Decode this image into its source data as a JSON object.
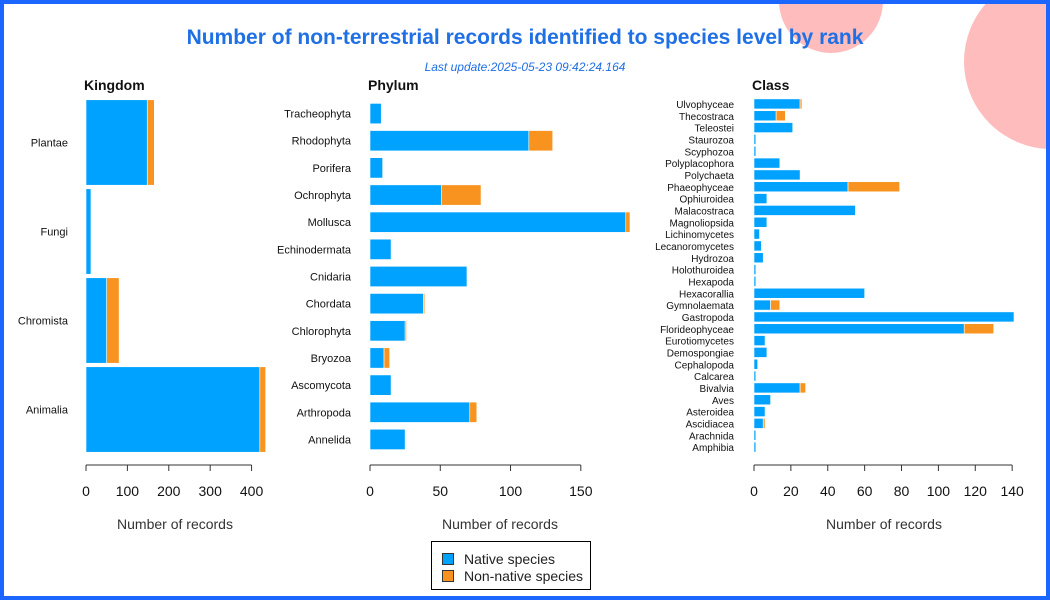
{
  "title": "Number of non-terrestrial records identified to species level by rank",
  "subtitle": "Last update:2025-05-23 09:42:24.164",
  "colors": {
    "native": "#00a2ff",
    "non_native": "#f7931e",
    "title": "#1f6fe5",
    "frame": "#1a66ff",
    "decoration": "#ffbcbc"
  },
  "legend": {
    "native_label": "Native species",
    "non_native_label": "Non-native species"
  },
  "chart_data": [
    {
      "type": "bar",
      "orientation": "horizontal",
      "stacked": true,
      "title": "Kingdom",
      "xlabel": "Number of records",
      "ylabel": "",
      "xlim": [
        0,
        430
      ],
      "xticks": [
        0,
        100,
        200,
        300,
        400
      ],
      "categories": [
        "Plantae",
        "Fungi",
        "Chromista",
        "Animalia"
      ],
      "series": [
        {
          "name": "Native species",
          "values": [
            148,
            12,
            50,
            420
          ]
        },
        {
          "name": "Non-native species",
          "values": [
            17,
            0,
            30,
            14
          ]
        }
      ]
    },
    {
      "type": "bar",
      "orientation": "horizontal",
      "stacked": true,
      "title": "Phylum",
      "xlabel": "Number of records",
      "ylabel": "",
      "xlim": [
        0,
        185
      ],
      "xticks": [
        0,
        50,
        100,
        150
      ],
      "categories": [
        "Tracheophyta",
        "Rhodophyta",
        "Porifera",
        "Ochrophyta",
        "Mollusca",
        "Echinodermata",
        "Cnidaria",
        "Chordata",
        "Chlorophyta",
        "Bryozoa",
        "Ascomycota",
        "Arthropoda",
        "Annelida"
      ],
      "series": [
        {
          "name": "Native species",
          "values": [
            8,
            113,
            9,
            51,
            182,
            15,
            69,
            38,
            25,
            10,
            15,
            71,
            25
          ]
        },
        {
          "name": "Non-native species",
          "values": [
            0,
            17,
            0,
            28,
            3,
            0,
            0,
            1,
            1,
            4,
            0,
            5,
            0
          ]
        }
      ]
    },
    {
      "type": "bar",
      "orientation": "horizontal",
      "stacked": true,
      "title": "Class",
      "xlabel": "Number of records",
      "ylabel": "",
      "xlim": [
        0,
        141
      ],
      "xticks": [
        0,
        20,
        40,
        60,
        80,
        100,
        120,
        140
      ],
      "categories": [
        "Ulvophyceae",
        "Thecostraca",
        "Teleostei",
        "Staurozoa",
        "Scyphozoa",
        "Polyplacophora",
        "Polychaeta",
        "Phaeophyceae",
        "Ophiuroidea",
        "Malacostraca",
        "Magnoliopsida",
        "Lichinomycetes",
        "Lecanoromycetes",
        "Hydrozoa",
        "Holothuroidea",
        "Hexapoda",
        "Hexacorallia",
        "Gymnolaemata",
        "Gastropoda",
        "Florideophyceae",
        "Eurotiomycetes",
        "Demospongiae",
        "Cephalopoda",
        "Calcarea",
        "Bivalvia",
        "Aves",
        "Asteroidea",
        "Ascidiacea",
        "Arachnida",
        "Amphibia"
      ],
      "series": [
        {
          "name": "Native species",
          "values": [
            25,
            12,
            21,
            1,
            1,
            14,
            25,
            51,
            7,
            55,
            7,
            3,
            4,
            5,
            1,
            1,
            60,
            9,
            141,
            114,
            6,
            7,
            2,
            1,
            25,
            9,
            6,
            5,
            1,
            1
          ]
        },
        {
          "name": "Non-native species",
          "values": [
            1,
            5,
            0,
            0,
            0,
            0,
            0,
            28,
            0,
            0,
            0,
            0,
            0,
            0,
            0,
            0,
            0,
            5,
            0,
            16,
            0,
            0,
            0,
            0,
            3,
            0,
            0,
            1,
            0,
            0
          ]
        }
      ]
    }
  ]
}
